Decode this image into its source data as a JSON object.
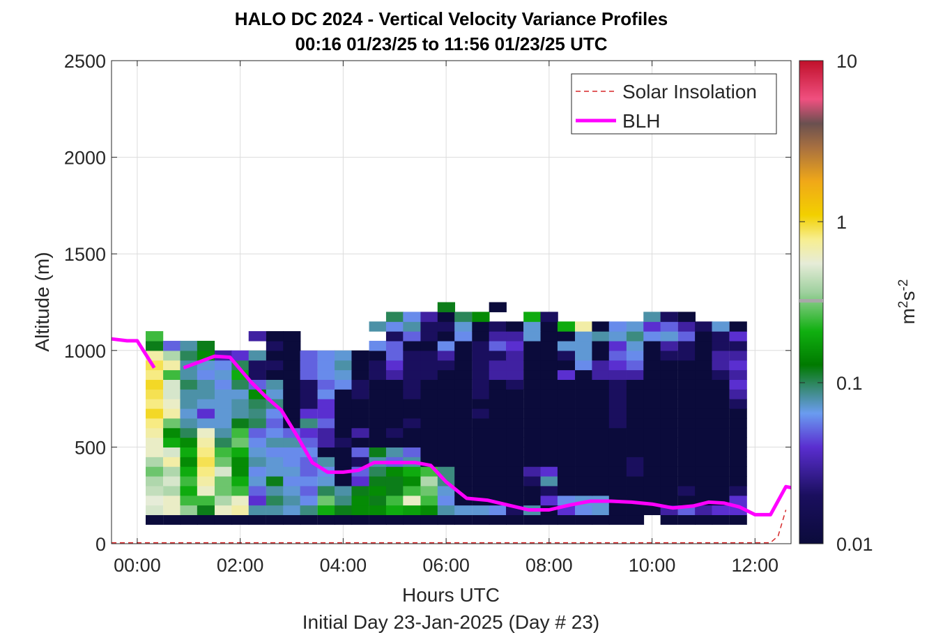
{
  "chart_data": {
    "type": "heatmap",
    "title": "HALO DC 2024 - Vertical Velocity Variance Profiles",
    "subtitle": "00:16 01/23/25 to 11:56 01/23/25  UTC",
    "xlabel": "Hours UTC",
    "xlabel2": "Initial Day 23-Jan-2025 (Day # 23)",
    "ylabel": "Altitude (m)",
    "colorbar_label_base": "m",
    "colorbar_label_sup1": "2",
    "colorbar_label_mid": "s",
    "colorbar_label_sup2": "-2",
    "xlim": [
      -0.5,
      12.7
    ],
    "ylim": [
      0,
      2500
    ],
    "x_ticks": [
      0,
      2,
      4,
      6,
      8,
      10,
      12
    ],
    "x_tick_labels": [
      "00:00",
      "02:00",
      "04:00",
      "06:00",
      "08:00",
      "10:00",
      "12:00"
    ],
    "y_ticks": [
      0,
      500,
      1000,
      1500,
      2000,
      2500
    ],
    "y_tick_labels": [
      "0",
      "500",
      "1000",
      "1500",
      "2000",
      "2500"
    ],
    "colorbar_scale": "log",
    "colorbar_range": [
      0.01,
      10
    ],
    "colorbar_ticks": [
      0.01,
      0.1,
      1,
      10
    ],
    "colorbar_tick_labels": [
      "0.01",
      "0.1",
      "1",
      "10"
    ],
    "grid": true,
    "legend_position": "top-right",
    "legend": [
      {
        "label": "Solar Insolation",
        "color": "#d62728",
        "style": "dashed"
      },
      {
        "label": "BLH",
        "color": "#ff00ff",
        "style": "solid"
      }
    ],
    "time_columns_hours": [
      0.33,
      0.67,
      1.0,
      1.33,
      1.67,
      2.0,
      2.33,
      2.67,
      3.0,
      3.33,
      3.67,
      4.0,
      4.33,
      4.67,
      5.0,
      5.33,
      5.67,
      6.0,
      6.33,
      6.67,
      7.0,
      7.33,
      7.67,
      8.0,
      8.33,
      8.67,
      9.0,
      9.33,
      9.67,
      10.0,
      10.33,
      10.67,
      11.0,
      11.33,
      11.67
    ],
    "variance_profiles_m2s2": [
      {
        "altitude_m": 125,
        "values": [
          0.01,
          0.01,
          0.01,
          0.01,
          0.01,
          0.01,
          0.01,
          0.01,
          0.01,
          0.01,
          0.01,
          0.01,
          0.01,
          0.01,
          0.01,
          0.01,
          0.01,
          0.01,
          0.01,
          0.01,
          0.01,
          0.01,
          0.01,
          0.01,
          0.01,
          0.01,
          0.01,
          0.01,
          0.01,
          null,
          0.01,
          0.01,
          0.01,
          0.01,
          0.01
        ]
      },
      {
        "altitude_m": 175,
        "values": [
          0.5,
          0.6,
          0.35,
          0.12,
          0.6,
          0.7,
          0.08,
          0.08,
          0.07,
          0.09,
          0.2,
          0.12,
          0.15,
          0.15,
          0.2,
          0.18,
          0.15,
          0.08,
          0.07,
          0.07,
          0.06,
          0.02,
          0.08,
          0.01,
          0.04,
          0.06,
          0.07,
          0.01,
          0.01,
          0.01,
          0.03,
          0.05,
          0.03,
          0.04,
          0.04
        ]
      },
      {
        "altitude_m": 225,
        "values": [
          0.55,
          0.6,
          0.25,
          0.25,
          0.4,
          0.6,
          0.04,
          0.1,
          0.08,
          0.06,
          0.3,
          0.09,
          0.15,
          0.12,
          0.25,
          0.6,
          0.25,
          0.06,
          0.01,
          0.01,
          0.01,
          0.01,
          0.01,
          0.04,
          0.06,
          0.07,
          0.07,
          0.01,
          0.01,
          0.01,
          0.01,
          0.01,
          0.01,
          0.01,
          0.04
        ]
      },
      {
        "altitude_m": 275,
        "values": [
          0.45,
          0.4,
          0.2,
          0.6,
          0.3,
          0.25,
          0.05,
          0.08,
          0.07,
          0.05,
          0.1,
          0.08,
          0.12,
          0.15,
          0.12,
          0.25,
          0.3,
          0.07,
          0.01,
          0.01,
          0.01,
          0.01,
          0.01,
          0.02,
          0.01,
          0.01,
          0.01,
          0.01,
          0.01,
          0.01,
          0.01,
          0.02,
          0.01,
          0.01,
          0.02
        ]
      },
      {
        "altitude_m": 325,
        "values": [
          0.4,
          0.5,
          0.25,
          0.7,
          0.3,
          0.2,
          0.07,
          0.12,
          0.06,
          0.06,
          0.07,
          0.01,
          0.04,
          0.12,
          0.12,
          0.15,
          0.4,
          0.09,
          0.01,
          0.01,
          0.01,
          0.01,
          0.02,
          0.08,
          0.01,
          0.01,
          0.01,
          0.01,
          0.01,
          0.01,
          0.01,
          0.01,
          0.01,
          0.01,
          0.01
        ]
      },
      {
        "altitude_m": 375,
        "values": [
          0.3,
          0.4,
          0.2,
          0.8,
          0.5,
          0.15,
          0.06,
          0.07,
          0.07,
          0.05,
          0.06,
          0.01,
          0.05,
          0.1,
          0.15,
          0.2,
          0.25,
          0.09,
          0.01,
          0.01,
          0.01,
          0.01,
          0.03,
          0.04,
          0.01,
          0.01,
          0.01,
          0.01,
          0.02,
          0.01,
          0.01,
          0.01,
          0.01,
          0.01,
          0.01
        ]
      },
      {
        "altitude_m": 425,
        "values": [
          0.4,
          0.7,
          0.15,
          0.9,
          0.3,
          0.15,
          0.08,
          0.07,
          0.06,
          0.05,
          0.08,
          0.01,
          0.02,
          0.08,
          0.05,
          0.08,
          0.01,
          0.01,
          0.01,
          0.01,
          0.01,
          0.01,
          0.01,
          0.01,
          0.01,
          0.01,
          0.01,
          0.01,
          0.02,
          0.01,
          0.01,
          0.01,
          0.01,
          0.01,
          0.01
        ]
      },
      {
        "altitude_m": 475,
        "values": [
          0.6,
          0.5,
          0.2,
          0.8,
          0.25,
          0.2,
          0.07,
          0.06,
          0.06,
          0.06,
          0.01,
          0.01,
          0.05,
          0.12,
          0.08,
          0.05,
          0.01,
          0.01,
          0.01,
          0.01,
          0.01,
          0.01,
          0.01,
          0.01,
          0.01,
          0.01,
          0.01,
          0.01,
          0.01,
          0.01,
          0.01,
          0.01,
          0.01,
          0.01,
          0.01
        ]
      },
      {
        "altitude_m": 525,
        "values": [
          0.6,
          0.2,
          0.15,
          0.7,
          0.1,
          0.3,
          0.06,
          0.08,
          0.08,
          0.05,
          0.03,
          0.02,
          0.01,
          0.01,
          0.01,
          0.01,
          0.01,
          0.01,
          0.01,
          0.01,
          0.01,
          0.01,
          0.01,
          0.01,
          0.01,
          0.01,
          0.01,
          0.01,
          0.01,
          0.01,
          0.01,
          0.01,
          0.01,
          0.01,
          0.01
        ]
      },
      {
        "altitude_m": 575,
        "values": [
          0.7,
          0.15,
          0.1,
          0.6,
          0.08,
          0.25,
          0.05,
          0.06,
          0.05,
          0.04,
          0.03,
          0.01,
          0.03,
          0.01,
          0.02,
          0.01,
          0.01,
          0.01,
          0.01,
          0.01,
          0.01,
          0.01,
          0.01,
          0.01,
          0.01,
          0.01,
          0.01,
          0.01,
          0.01,
          0.01,
          0.01,
          0.01,
          0.01,
          0.01,
          0.01
        ]
      },
      {
        "altitude_m": 625,
        "values": [
          0.8,
          0.3,
          0.08,
          0.07,
          0.07,
          0.12,
          0.1,
          0.05,
          0.01,
          0.09,
          0.05,
          0.01,
          0.01,
          0.01,
          0.01,
          0.02,
          0.01,
          0.01,
          0.01,
          0.01,
          0.01,
          0.01,
          0.01,
          0.01,
          0.01,
          0.01,
          0.01,
          0.02,
          0.01,
          0.01,
          0.01,
          0.01,
          0.01,
          0.01,
          0.01
        ]
      },
      {
        "altitude_m": 675,
        "values": [
          1.0,
          0.7,
          0.07,
          0.04,
          0.07,
          0.08,
          0.09,
          0.06,
          0.01,
          0.04,
          0.04,
          0.01,
          0.01,
          0.01,
          0.01,
          0.01,
          0.01,
          0.01,
          0.01,
          0.02,
          0.01,
          0.01,
          0.01,
          0.01,
          0.01,
          0.01,
          0.01,
          0.02,
          0.01,
          0.01,
          0.01,
          0.01,
          0.01,
          0.01,
          0.01
        ]
      },
      {
        "altitude_m": 725,
        "values": [
          0.8,
          0.6,
          0.08,
          0.07,
          0.07,
          0.08,
          0.1,
          0.09,
          0.01,
          0.02,
          0.04,
          0.01,
          0.01,
          0.01,
          0.01,
          0.01,
          0.01,
          0.01,
          0.01,
          0.01,
          0.01,
          0.01,
          0.01,
          0.01,
          0.01,
          0.01,
          0.01,
          0.02,
          0.01,
          0.01,
          0.01,
          0.01,
          0.01,
          0.01,
          0.02
        ]
      },
      {
        "altitude_m": 775,
        "values": [
          0.9,
          0.5,
          0.08,
          0.08,
          0.07,
          0.07,
          0.15,
          0.07,
          0.01,
          0.02,
          0.06,
          0.01,
          0.02,
          0.01,
          0.01,
          0.02,
          0.01,
          0.01,
          0.01,
          0.02,
          0.01,
          0.01,
          0.01,
          0.01,
          0.01,
          0.01,
          0.01,
          0.02,
          0.01,
          0.01,
          0.01,
          0.01,
          0.01,
          0.01,
          0.03
        ]
      },
      {
        "altitude_m": 825,
        "values": [
          1.0,
          0.5,
          0.1,
          0.08,
          0.06,
          0.1,
          0.05,
          0.08,
          0.01,
          0.02,
          0.05,
          0.06,
          0.02,
          0.01,
          0.01,
          0.02,
          0.01,
          0.01,
          0.01,
          0.02,
          0.01,
          0.02,
          0.01,
          0.01,
          0.01,
          0.01,
          0.01,
          0.02,
          0.01,
          0.01,
          0.01,
          0.01,
          0.01,
          0.01,
          0.04
        ]
      },
      {
        "altitude_m": 875,
        "values": [
          0.8,
          0.25,
          0.08,
          0.06,
          0.07,
          0.2,
          0.02,
          0.01,
          0.01,
          0.05,
          0.06,
          0.07,
          0.01,
          0.02,
          0.03,
          0.02,
          0.02,
          0.01,
          0.01,
          0.02,
          0.03,
          0.03,
          0.01,
          0.01,
          0.04,
          0.01,
          0.03,
          0.03,
          0.03,
          0.01,
          0.01,
          0.01,
          0.01,
          0.02,
          0.03
        ]
      },
      {
        "altitude_m": 925,
        "values": [
          0.9,
          0.7,
          0.08,
          0.07,
          0.06,
          0.1,
          0.02,
          0.02,
          0.01,
          0.05,
          0.06,
          0.08,
          0.01,
          0.02,
          0.04,
          0.02,
          0.02,
          0.02,
          0.01,
          0.02,
          0.03,
          0.03,
          0.01,
          0.01,
          0.01,
          0.06,
          0.03,
          0.04,
          0.05,
          0.01,
          0.01,
          0.01,
          0.01,
          0.03,
          0.04
        ]
      },
      {
        "altitude_m": 975,
        "values": [
          0.7,
          0.4,
          0.1,
          0.15,
          0.03,
          0.04,
          0.08,
          0.01,
          0.01,
          0.05,
          0.06,
          0.07,
          0.01,
          0.01,
          0.05,
          0.02,
          0.02,
          0.03,
          0.01,
          0.02,
          0.02,
          0.03,
          0.01,
          0.01,
          0.02,
          0.07,
          0.01,
          0.05,
          0.06,
          0.01,
          0.02,
          0.02,
          0.01,
          0.03,
          0.03
        ]
      },
      {
        "altitude_m": 1025,
        "values": [
          0.12,
          0.05,
          0.08,
          0.12,
          null,
          null,
          null,
          0.02,
          0.01,
          null,
          null,
          null,
          null,
          0.06,
          0.05,
          0.01,
          0.01,
          0.06,
          0.01,
          0.02,
          0.05,
          0.04,
          0.01,
          0.01,
          0.07,
          0.07,
          0.01,
          0.04,
          0.07,
          0.01,
          0.03,
          0.02,
          0.01,
          0.02,
          0.02
        ]
      },
      {
        "altitude_m": 1075,
        "values": [
          0.25,
          null,
          null,
          null,
          null,
          null,
          0.03,
          0.01,
          0.01,
          null,
          null,
          null,
          null,
          null,
          0.02,
          0.05,
          0.02,
          0.01,
          0.06,
          0.01,
          0.03,
          0.03,
          0.07,
          0.01,
          0.01,
          0.07,
          0.08,
          0.07,
          0.09,
          0.06,
          0.07,
          0.05,
          0.01,
          0.02,
          0.04
        ]
      },
      {
        "altitude_m": 1125,
        "values": [
          null,
          null,
          null,
          null,
          null,
          null,
          null,
          null,
          null,
          null,
          null,
          null,
          null,
          0.08,
          0.06,
          0.08,
          0.02,
          0.02,
          0.07,
          0.01,
          0.02,
          0.01,
          0.07,
          0.01,
          0.2,
          0.7,
          0.01,
          0.06,
          0.07,
          0.04,
          0.05,
          0.03,
          0.02,
          0.07,
          0.01
        ]
      },
      {
        "altitude_m": 1175,
        "values": [
          null,
          null,
          null,
          null,
          null,
          null,
          null,
          null,
          null,
          null,
          null,
          null,
          null,
          null,
          0.1,
          0.06,
          0.03,
          0.01,
          0.1,
          0.15,
          null,
          null,
          0.2,
          0.02,
          null,
          null,
          null,
          null,
          null,
          0.08,
          0.02,
          0.01,
          null,
          null,
          null
        ]
      },
      {
        "altitude_m": 1225,
        "values": [
          null,
          null,
          null,
          null,
          null,
          null,
          null,
          null,
          null,
          null,
          null,
          null,
          null,
          null,
          null,
          null,
          null,
          0.12,
          null,
          null,
          0.01,
          null,
          null,
          null,
          null,
          null,
          null,
          null,
          null,
          null,
          null,
          null,
          null,
          null,
          null
        ]
      }
    ],
    "series": [
      {
        "name": "BLH",
        "x": [
          -0.5,
          -0.2,
          0.0,
          0.33,
          0.67,
          0.9,
          1.5,
          1.8,
          2.2,
          2.5,
          2.8,
          3.1,
          3.4,
          3.7,
          4.0,
          4.3,
          4.6,
          5.0,
          5.4,
          5.7,
          6.0,
          6.4,
          6.8,
          7.2,
          7.6,
          8.0,
          8.4,
          8.8,
          9.2,
          9.6,
          10.0,
          10.4,
          10.8,
          11.1,
          11.4,
          11.7,
          12.0,
          12.3,
          12.6,
          12.7
        ],
        "y": [
          1060,
          1050,
          1050,
          910,
          null,
          910,
          970,
          965,
          840,
          760,
          690,
          560,
          420,
          370,
          370,
          380,
          420,
          420,
          420,
          405,
          320,
          235,
          225,
          200,
          175,
          175,
          200,
          220,
          220,
          215,
          205,
          185,
          195,
          215,
          210,
          190,
          150,
          150,
          295,
          290
        ]
      },
      {
        "name": "Solar Insolation",
        "x": [
          -0.5,
          12.3,
          12.45,
          12.6
        ],
        "y": [
          5,
          5,
          40,
          175
        ]
      }
    ]
  },
  "colors": {
    "blh": "#ff00ff",
    "solar": "#d62728",
    "axis": "#262626",
    "grid": "#dcdcdc"
  }
}
